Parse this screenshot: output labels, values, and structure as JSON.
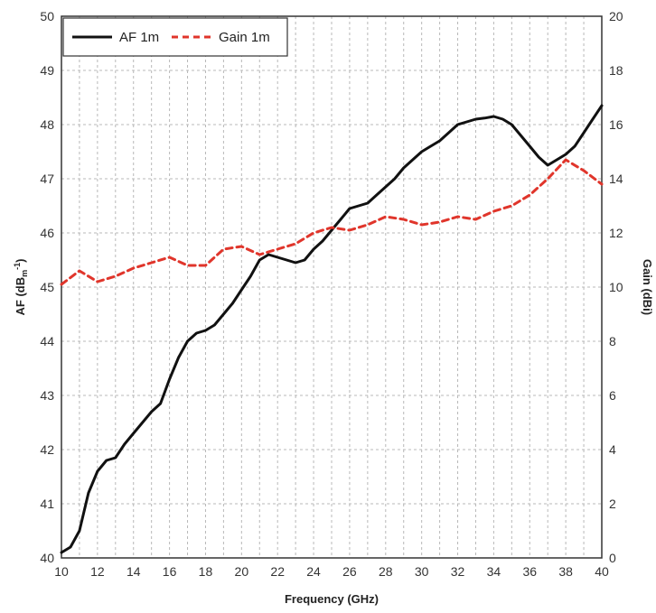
{
  "chart_data": {
    "type": "line",
    "xlabel": "Frequency (GHz)",
    "ylabel_left": "AF (dB",
    "ylabel_left_sub": "m",
    "ylabel_left_sup": "-1",
    "ylabel_left_close": ")",
    "ylabel_right": "Gain (dBi)",
    "xlim": [
      10,
      40
    ],
    "ylim_left": [
      40,
      50
    ],
    "ylim_right": [
      0,
      20
    ],
    "x_ticks": [
      "10",
      "12",
      "14",
      "16",
      "18",
      "20",
      "22",
      "24",
      "26",
      "28",
      "30",
      "32",
      "34",
      "36",
      "38",
      "40"
    ],
    "y_left_ticks": [
      "40",
      "41",
      "42",
      "43",
      "44",
      "45",
      "46",
      "47",
      "48",
      "49",
      "50"
    ],
    "y_right_ticks": [
      "0",
      "2",
      "4",
      "6",
      "8",
      "10",
      "12",
      "14",
      "16",
      "18",
      "20"
    ],
    "grid": true,
    "legend_position": "top-left",
    "colors": {
      "af": "#111111",
      "gain": "#e0352b",
      "grid": "#b8b8b8"
    },
    "series": [
      {
        "name": "AF 1m",
        "axis": "left",
        "style": "solid",
        "x": [
          10,
          10.5,
          11,
          11.5,
          12,
          12.5,
          13,
          13.5,
          14,
          14.5,
          15,
          15.5,
          16,
          16.5,
          17,
          17.5,
          18,
          18.5,
          19,
          19.5,
          20,
          20.5,
          21,
          21.5,
          22,
          22.5,
          23,
          23.5,
          24,
          24.5,
          25,
          25.5,
          26,
          26.5,
          27,
          27.5,
          28,
          28.5,
          29,
          29.5,
          30,
          30.5,
          31,
          31.5,
          32,
          32.5,
          33,
          33.5,
          34,
          34.5,
          35,
          35.5,
          36,
          36.5,
          37,
          37.5,
          38,
          38.5,
          39,
          39.5,
          40
        ],
        "values": [
          40.1,
          40.2,
          40.5,
          41.2,
          41.6,
          41.8,
          41.85,
          42.1,
          42.3,
          42.5,
          42.7,
          42.85,
          43.3,
          43.7,
          44.0,
          44.15,
          44.2,
          44.3,
          44.5,
          44.7,
          44.95,
          45.2,
          45.5,
          45.6,
          45.55,
          45.5,
          45.45,
          45.5,
          45.7,
          45.85,
          46.05,
          46.25,
          46.45,
          46.5,
          46.55,
          46.7,
          46.85,
          47.0,
          47.2,
          47.35,
          47.5,
          47.6,
          47.7,
          47.85,
          48.0,
          48.05,
          48.1,
          48.12,
          48.15,
          48.1,
          48.0,
          47.8,
          47.6,
          47.4,
          47.25,
          47.35,
          47.45,
          47.6,
          47.85,
          48.1,
          48.35
        ]
      },
      {
        "name": "Gain 1m",
        "axis": "right",
        "style": "dashed",
        "x": [
          10,
          11,
          12,
          13,
          14,
          15,
          16,
          17,
          18,
          19,
          20,
          21,
          22,
          23,
          24,
          25,
          26,
          27,
          28,
          29,
          30,
          31,
          32,
          33,
          34,
          35,
          36,
          37,
          38,
          39,
          40
        ],
        "values": [
          10.1,
          10.6,
          10.2,
          10.4,
          10.7,
          10.9,
          11.1,
          10.8,
          10.8,
          11.4,
          11.5,
          11.2,
          11.4,
          11.6,
          12.0,
          12.2,
          12.1,
          12.3,
          12.6,
          12.5,
          12.3,
          12.4,
          12.6,
          12.5,
          12.8,
          13.0,
          13.4,
          14.0,
          14.7,
          14.3,
          13.8
        ]
      }
    ]
  }
}
